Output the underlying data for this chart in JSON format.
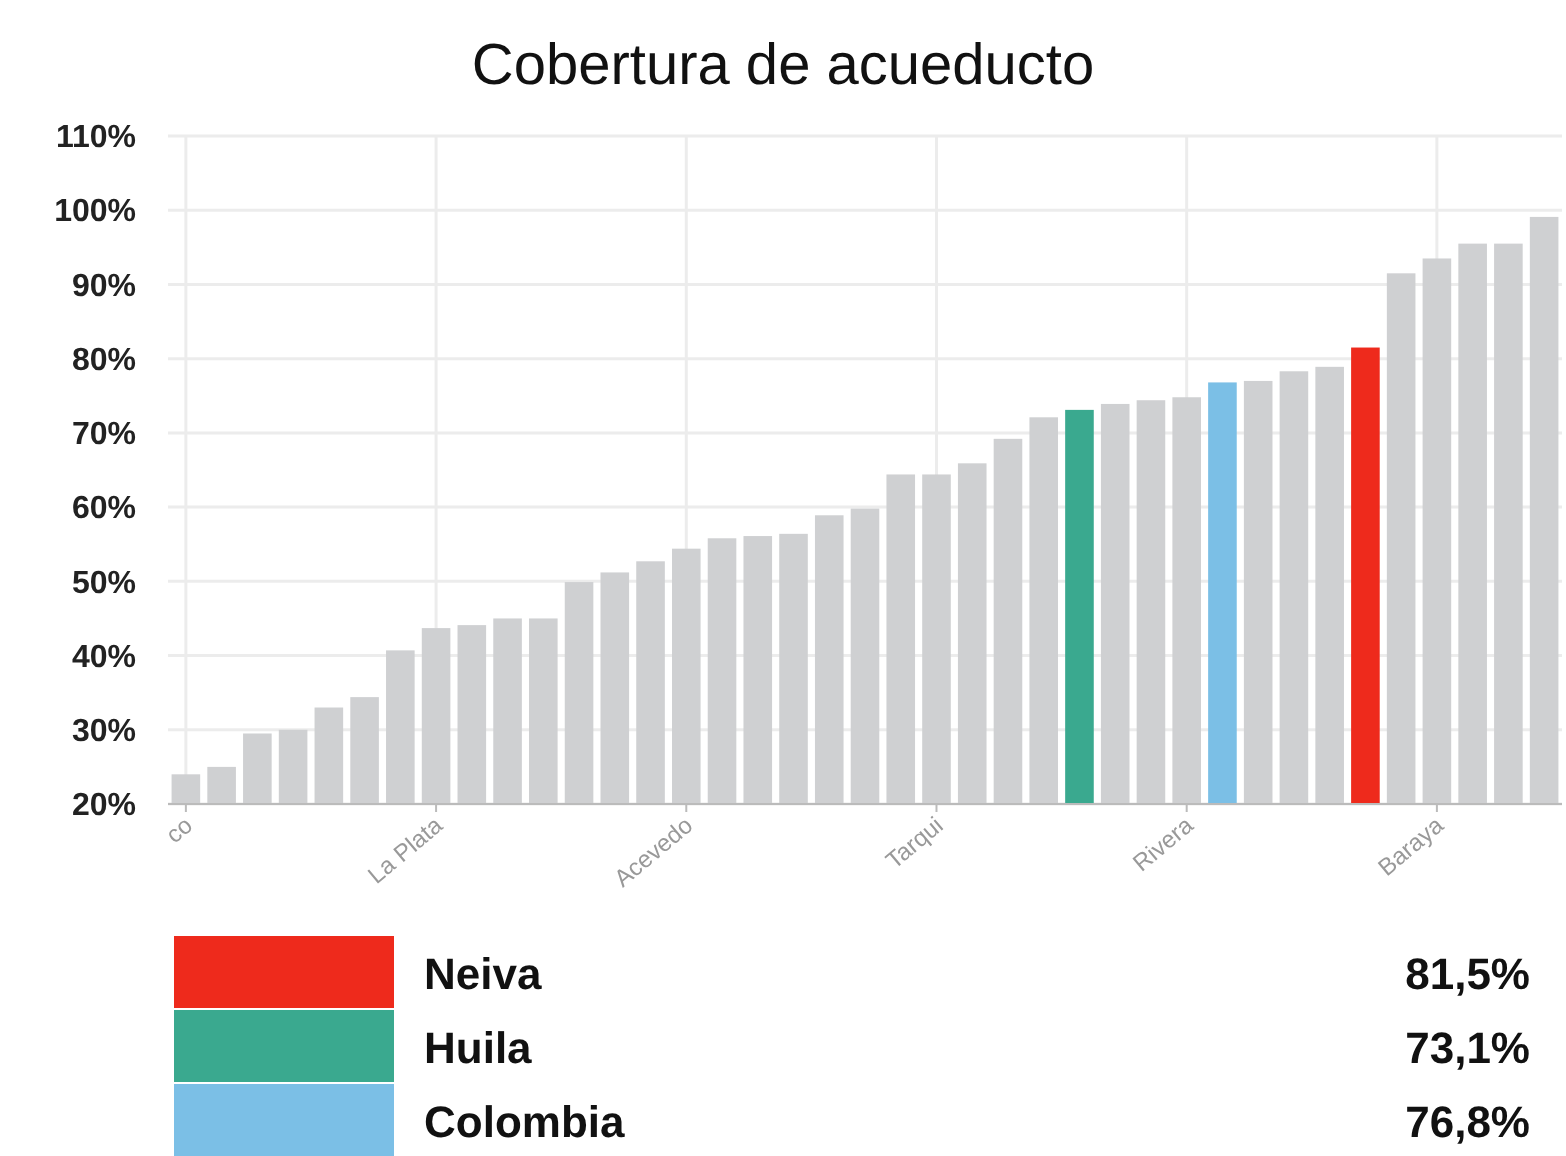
{
  "chart_data": {
    "type": "bar",
    "title": "Cobertura de acueducto",
    "categories": [
      "co",
      null,
      null,
      null,
      null,
      null,
      null,
      "La Plata",
      null,
      null,
      null,
      null,
      null,
      null,
      "Acevedo",
      null,
      null,
      null,
      null,
      null,
      null,
      "Tarqui",
      null,
      null,
      null,
      null,
      null,
      null,
      "Rivera",
      null,
      null,
      null,
      null,
      null,
      null,
      "Baraya",
      null,
      null,
      null
    ],
    "series": [
      {
        "color": "#cfd0d2",
        "values": [
          24.0,
          25.0,
          29.5,
          30.0,
          33.0,
          34.4,
          40.7,
          43.7,
          44.1,
          45.0,
          45.0,
          49.9,
          51.2,
          52.7,
          54.4,
          55.8,
          56.1,
          56.4,
          58.9,
          59.8,
          64.4,
          64.4,
          65.9,
          69.2,
          72.1,
          null,
          73.9,
          74.4,
          74.8,
          null,
          77.0,
          78.3,
          78.9,
          null,
          91.5,
          93.5,
          95.5,
          95.5,
          99.1
        ]
      },
      {
        "name": "Neiva",
        "color": "#ee2a1c",
        "values": [
          null,
          null,
          null,
          null,
          null,
          null,
          null,
          null,
          null,
          null,
          null,
          null,
          null,
          null,
          null,
          null,
          null,
          null,
          null,
          null,
          null,
          null,
          null,
          null,
          null,
          null,
          null,
          null,
          null,
          null,
          null,
          null,
          null,
          81.5,
          null,
          null,
          null,
          null,
          null
        ]
      },
      {
        "name": "Huila",
        "color": "#3aa98f",
        "values": [
          null,
          null,
          null,
          null,
          null,
          null,
          null,
          null,
          null,
          null,
          null,
          null,
          null,
          null,
          null,
          null,
          null,
          null,
          null,
          null,
          null,
          null,
          null,
          null,
          null,
          73.1,
          null,
          null,
          null,
          null,
          null,
          null,
          null,
          null,
          null,
          null,
          null,
          null,
          null
        ]
      },
      {
        "name": "Colombia",
        "color": "#7bbfe6",
        "values": [
          null,
          null,
          null,
          null,
          null,
          null,
          null,
          null,
          null,
          null,
          null,
          null,
          null,
          null,
          null,
          null,
          null,
          null,
          null,
          null,
          null,
          null,
          null,
          null,
          null,
          null,
          null,
          null,
          null,
          76.8,
          null,
          null,
          null,
          null,
          null,
          null,
          null,
          null,
          null
        ]
      }
    ],
    "annotations": [
      "81,5%",
      "73,1%",
      "76,8%"
    ],
    "ylim": [
      20,
      110
    ],
    "yticks": [
      {
        "value": 20,
        "label": "20%"
      },
      {
        "value": 30,
        "label": "30%"
      },
      {
        "value": 40,
        "label": "40%"
      },
      {
        "value": 50,
        "label": "50%"
      },
      {
        "value": 60,
        "label": "60%"
      },
      {
        "value": 70,
        "label": "70%"
      },
      {
        "value": 80,
        "label": "80%"
      },
      {
        "value": 90,
        "label": "90%"
      },
      {
        "value": 100,
        "label": "100%"
      },
      {
        "value": 110,
        "label": "110%"
      }
    ],
    "grid": true,
    "legend": "bottom"
  }
}
